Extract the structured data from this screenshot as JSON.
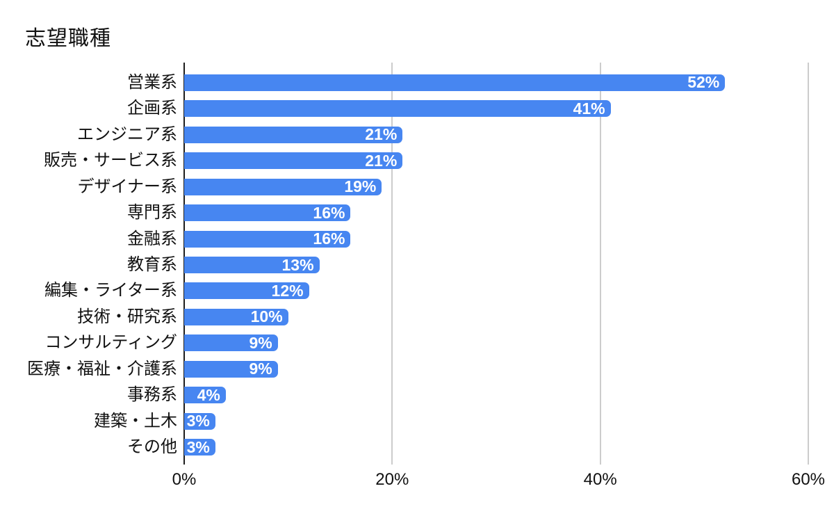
{
  "colors": {
    "bar": "#4786f1",
    "grid": "#cccccc",
    "axis": "#1c1c1c",
    "text": "#111111",
    "value_label": "#ffffff",
    "background": "#ffffff"
  },
  "chart_data": {
    "type": "bar",
    "orientation": "horizontal",
    "title": "志望職種",
    "categories": [
      "営業系",
      "企画系",
      "エンジニア系",
      "販売・サービス系",
      "デザイナー系",
      "専門系",
      "金融系",
      "教育系",
      "編集・ライター系",
      "技術・研究系",
      "コンサルティング",
      "医療・福祉・介護系",
      "事務系",
      "建築・土木",
      "その他"
    ],
    "values": [
      52,
      41,
      21,
      21,
      19,
      16,
      16,
      13,
      12,
      10,
      9,
      9,
      4,
      3,
      3
    ],
    "value_labels": [
      "52%",
      "41%",
      "21%",
      "21%",
      "19%",
      "16%",
      "16%",
      "13%",
      "12%",
      "10%",
      "9%",
      "9%",
      "4%",
      "3%",
      "3%"
    ],
    "xlabel": "",
    "ylabel": "",
    "xlim": [
      0,
      60
    ],
    "x_tick_values": [
      0,
      20,
      40,
      60
    ],
    "x_ticks": [
      "0%",
      "20%",
      "40%",
      "60%"
    ],
    "grid": true,
    "legend": false,
    "value_labels_position": "inside-end"
  }
}
